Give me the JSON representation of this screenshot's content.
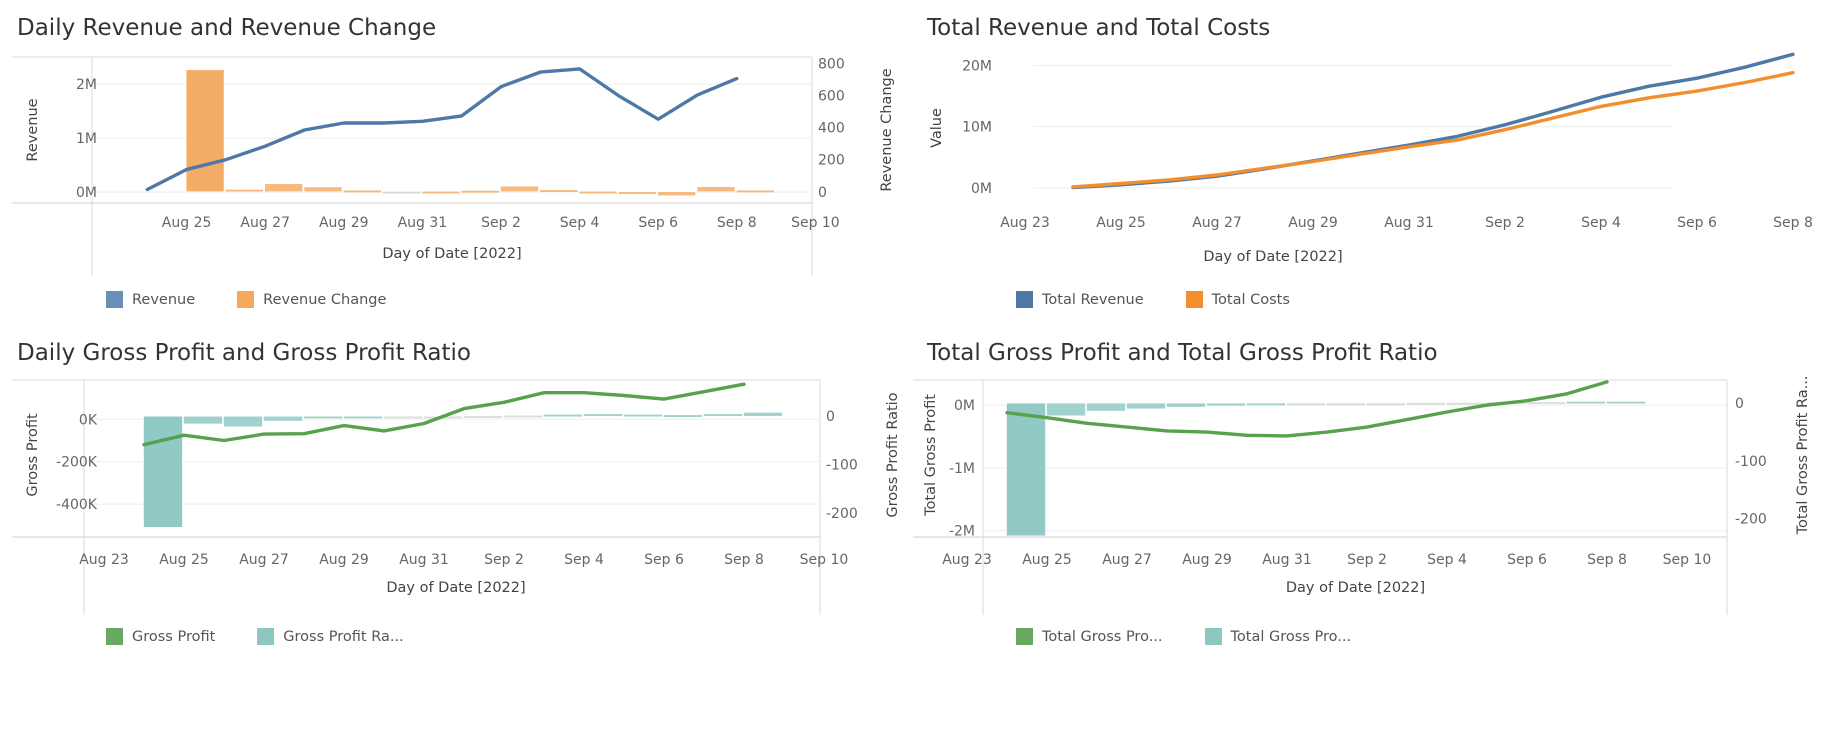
{
  "panels": [
    {
      "title": "Daily Revenue and Revenue Change",
      "legend": [
        {
          "label": "Revenue",
          "color": "#6a8fb6"
        },
        {
          "label": "Revenue Change",
          "color": "#f4a95e"
        }
      ]
    },
    {
      "title": "Total Revenue and Total Costs",
      "legend": [
        {
          "label": "Total Revenue",
          "color": "#4e79a7"
        },
        {
          "label": "Total Costs",
          "color": "#f28e2b"
        }
      ]
    },
    {
      "title": "Daily Gross Profit and Gross Profit Ratio",
      "legend": [
        {
          "label": "Gross Profit",
          "color": "#69a860"
        },
        {
          "label": "Gross Profit Ra...",
          "color": "#8cc7c1"
        }
      ]
    },
    {
      "title": "Total Gross Profit and Total Gross Profit Ratio",
      "legend": [
        {
          "label": "Total Gross Pro...",
          "color": "#69a860"
        },
        {
          "label": "Total Gross Pro...",
          "color": "#8cc7c1"
        }
      ]
    }
  ],
  "chart_data": [
    {
      "type": "line",
      "title": "Daily Revenue and Revenue Change",
      "xlabel": "Day of Date [2022]",
      "ylabel": "Revenue",
      "y2label": "Revenue Change",
      "x_ticks": [
        "Aug 25",
        "Aug 27",
        "Aug 29",
        "Aug 31",
        "Sep 2",
        "Sep 4",
        "Sep 6",
        "Sep 8",
        "Sep 10"
      ],
      "y_ticks": [
        "0M",
        "1M",
        "2M"
      ],
      "y2_ticks": [
        "0",
        "200",
        "400",
        "600",
        "800"
      ],
      "ylim": [
        -0.2,
        2.5
      ],
      "y2lim": [
        -70,
        840
      ],
      "series": [
        {
          "name": "Revenue",
          "kind": "line",
          "color": "#4e79a7",
          "axis": "left",
          "x": [
            "Aug 24",
            "Aug 25",
            "Aug 26",
            "Aug 27",
            "Aug 28",
            "Aug 29",
            "Aug 30",
            "Aug 31",
            "Sep 1",
            "Sep 2",
            "Sep 3",
            "Sep 4",
            "Sep 5",
            "Sep 6",
            "Sep 7",
            "Sep 8"
          ],
          "values": [
            0.05,
            0.42,
            0.6,
            0.85,
            1.15,
            1.28,
            1.28,
            1.31,
            1.41,
            1.95,
            2.22,
            2.28,
            1.78,
            1.35,
            1.8,
            2.1
          ]
        },
        {
          "name": "Revenue Change",
          "kind": "bar",
          "color": "#f4a95e",
          "axis": "right",
          "x": [
            "Aug 25",
            "Aug 26",
            "Aug 27",
            "Aug 28",
            "Aug 29",
            "Aug 30",
            "Aug 31",
            "Sep 1",
            "Sep 2",
            "Sep 3",
            "Sep 4",
            "Sep 5",
            "Sep 6",
            "Sep 7",
            "Sep 8"
          ],
          "values": [
            760,
            15,
            50,
            30,
            10,
            2,
            3,
            8,
            35,
            12,
            3,
            -10,
            -25,
            32,
            10
          ]
        }
      ]
    },
    {
      "type": "line",
      "title": "Total Revenue and Total Costs",
      "xlabel": "Day of Date [2022]",
      "ylabel": "Value",
      "x_ticks": [
        "Aug 23",
        "Aug 25",
        "Aug 27",
        "Aug 29",
        "Aug 31",
        "Sep 2",
        "Sep 4",
        "Sep 6",
        "Sep 8"
      ],
      "y_ticks": [
        "0M",
        "10M",
        "20M"
      ],
      "ylim": [
        -1.5,
        23
      ],
      "series": [
        {
          "name": "Total Revenue",
          "color": "#4e79a7",
          "x": [
            "Aug 24",
            "Aug 25",
            "Aug 26",
            "Aug 27",
            "Aug 28",
            "Aug 29",
            "Aug 30",
            "Aug 31",
            "Sep 1",
            "Sep 2",
            "Sep 3",
            "Sep 4",
            "Sep 5",
            "Sep 6",
            "Sep 7",
            "Sep 8"
          ],
          "values": [
            0.05,
            0.5,
            1.1,
            1.9,
            3.1,
            4.4,
            5.7,
            7.0,
            8.4,
            10.3,
            12.5,
            14.8,
            16.6,
            17.9,
            19.7,
            21.8
          ]
        },
        {
          "name": "Total Costs",
          "color": "#f28e2b",
          "x": [
            "Aug 24",
            "Aug 25",
            "Aug 26",
            "Aug 27",
            "Aug 28",
            "Aug 29",
            "Aug 30",
            "Aug 31",
            "Sep 1",
            "Sep 2",
            "Sep 3",
            "Sep 4",
            "Sep 5",
            "Sep 6",
            "Sep 7",
            "Sep 8"
          ],
          "values": [
            0.15,
            0.7,
            1.3,
            2.1,
            3.2,
            4.3,
            5.5,
            6.7,
            7.8,
            9.5,
            11.4,
            13.3,
            14.7,
            15.8,
            17.2,
            18.8
          ]
        }
      ]
    },
    {
      "type": "line",
      "title": "Daily Gross Profit and Gross Profit Ratio",
      "xlabel": "Day of Date [2022]",
      "ylabel": "Gross Profit",
      "y2label": "Gross Profit Ratio",
      "x_ticks": [
        "Aug 23",
        "Aug 25",
        "Aug 27",
        "Aug 29",
        "Aug 31",
        "Sep 2",
        "Sep 4",
        "Sep 6",
        "Sep 8",
        "Sep 10"
      ],
      "y_ticks": [
        "0K",
        "-200K",
        "-400K"
      ],
      "y2_ticks": [
        "0",
        "-100",
        "-200"
      ],
      "ylim": [
        -555,
        185
      ],
      "y2lim": [
        -250,
        75
      ],
      "series": [
        {
          "name": "Gross Profit",
          "kind": "line",
          "color": "#59a14f",
          "axis": "left",
          "x": [
            "Aug 24",
            "Aug 25",
            "Aug 26",
            "Aug 27",
            "Aug 28",
            "Aug 29",
            "Aug 30",
            "Aug 31",
            "Sep 1",
            "Sep 2",
            "Sep 3",
            "Sep 4",
            "Sep 5",
            "Sep 6",
            "Sep 7",
            "Sep 8"
          ],
          "values": [
            -120,
            -75,
            -100,
            -70,
            -68,
            -30,
            -55,
            -20,
            50,
            80,
            125,
            125,
            112,
            95,
            130,
            165
          ]
        },
        {
          "name": "Gross Profit Ratio",
          "kind": "bar",
          "color": "#8cc7c1",
          "axis": "right",
          "x": [
            "Aug 24",
            "Aug 25",
            "Aug 26",
            "Aug 27",
            "Aug 28",
            "Aug 29",
            "Aug 30",
            "Aug 31",
            "Sep 1",
            "Sep 2",
            "Sep 3",
            "Sep 4",
            "Sep 5",
            "Sep 6",
            "Sep 7",
            "Sep 8"
          ],
          "values": [
            -230,
            -16,
            -22,
            -10,
            -5,
            -3,
            -2,
            -2,
            1,
            2,
            4,
            5,
            4,
            3,
            5,
            8
          ]
        }
      ]
    },
    {
      "type": "line",
      "title": "Total Gross Profit and Total Gross Profit Ratio",
      "xlabel": "Day of Date [2022]",
      "ylabel": "Total Gross Profit",
      "y2label": "Total Gross Profit Ra...",
      "x_ticks": [
        "Aug 23",
        "Aug 25",
        "Aug 27",
        "Aug 29",
        "Aug 31",
        "Sep 2",
        "Sep 4",
        "Sep 6",
        "Sep 8",
        "Sep 10"
      ],
      "y_ticks": [
        "0M",
        "-1M",
        "-2M"
      ],
      "y2_ticks": [
        "0",
        "-100",
        "-200"
      ],
      "ylim": [
        -2.1,
        0.4
      ],
      "y2lim": [
        -232,
        40
      ],
      "series": [
        {
          "name": "Total Gross Profit",
          "kind": "line",
          "color": "#59a14f",
          "axis": "left",
          "x": [
            "Aug 24",
            "Aug 25",
            "Aug 26",
            "Aug 27",
            "Aug 28",
            "Aug 29",
            "Aug 30",
            "Aug 31",
            "Sep 1",
            "Sep 2",
            "Sep 3",
            "Sep 4",
            "Sep 5",
            "Sep 6",
            "Sep 7",
            "Sep 8"
          ],
          "values": [
            -0.12,
            -0.2,
            -0.29,
            -0.35,
            -0.41,
            -0.43,
            -0.48,
            -0.49,
            -0.43,
            -0.35,
            -0.23,
            -0.11,
            0.0,
            0.07,
            0.18,
            0.37
          ]
        },
        {
          "name": "Total Gross Profit Ratio",
          "kind": "bar",
          "color": "#8cc7c1",
          "axis": "right",
          "x": [
            "Aug 24",
            "Aug 25",
            "Aug 26",
            "Aug 27",
            "Aug 28",
            "Aug 29",
            "Aug 30",
            "Aug 31",
            "Sep 1",
            "Sep 2",
            "Sep 3",
            "Sep 4",
            "Sep 5",
            "Sep 6",
            "Sep 7",
            "Sep 8"
          ],
          "values": [
            -230,
            -22,
            -14,
            -10,
            -7,
            -5,
            -4,
            -2,
            -1,
            0,
            1,
            1,
            2,
            2,
            3,
            3
          ]
        }
      ]
    }
  ]
}
